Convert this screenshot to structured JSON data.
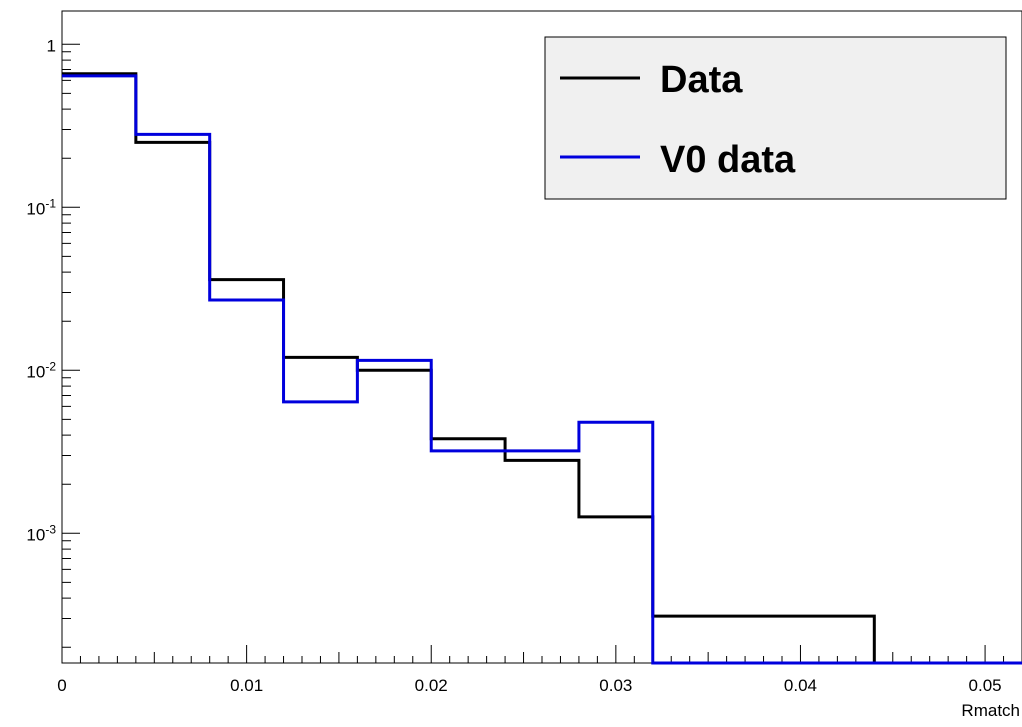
{
  "chart_data": {
    "type": "line",
    "plot_style": "step-histogram",
    "title": "",
    "xlabel": "Rmatch",
    "ylabel": "",
    "xlim": [
      0,
      0.052
    ],
    "ylim": [
      0.00016,
      1.6
    ],
    "yscale": "log",
    "grid": false,
    "legend_position": "top-right",
    "x_ticks": [
      {
        "value": 0,
        "label": "0"
      },
      {
        "value": 0.01,
        "label": "0.01"
      },
      {
        "value": 0.02,
        "label": "0.02"
      },
      {
        "value": 0.03,
        "label": "0.03"
      },
      {
        "value": 0.04,
        "label": "0.04"
      },
      {
        "value": 0.05,
        "label": "0.05"
      }
    ],
    "y_ticks": [
      {
        "value": 1,
        "base": "1",
        "exp": ""
      },
      {
        "value": 0.1,
        "base": "10",
        "exp": "-1"
      },
      {
        "value": 0.01,
        "base": "10",
        "exp": "-2"
      },
      {
        "value": 0.001,
        "base": "10",
        "exp": "-3"
      }
    ],
    "bin_edges": [
      0,
      0.004,
      0.008,
      0.012,
      0.016,
      0.02,
      0.024,
      0.028,
      0.032,
      0.036,
      0.04,
      0.044,
      0.048,
      0.052
    ],
    "series": [
      {
        "name": "Data",
        "color": "#000000",
        "values": [
          0.66,
          0.25,
          0.036,
          0.012,
          0.01,
          0.0038,
          0.0028,
          0.00126,
          0.00031,
          0.00031,
          0.00031,
          0,
          0
        ]
      },
      {
        "name": "V0 data",
        "color": "#0000dd",
        "values": [
          0.64,
          0.28,
          0.027,
          0.0064,
          0.0115,
          0.0032,
          0.0032,
          0.0048,
          0,
          0,
          0,
          0,
          0
        ]
      }
    ]
  }
}
